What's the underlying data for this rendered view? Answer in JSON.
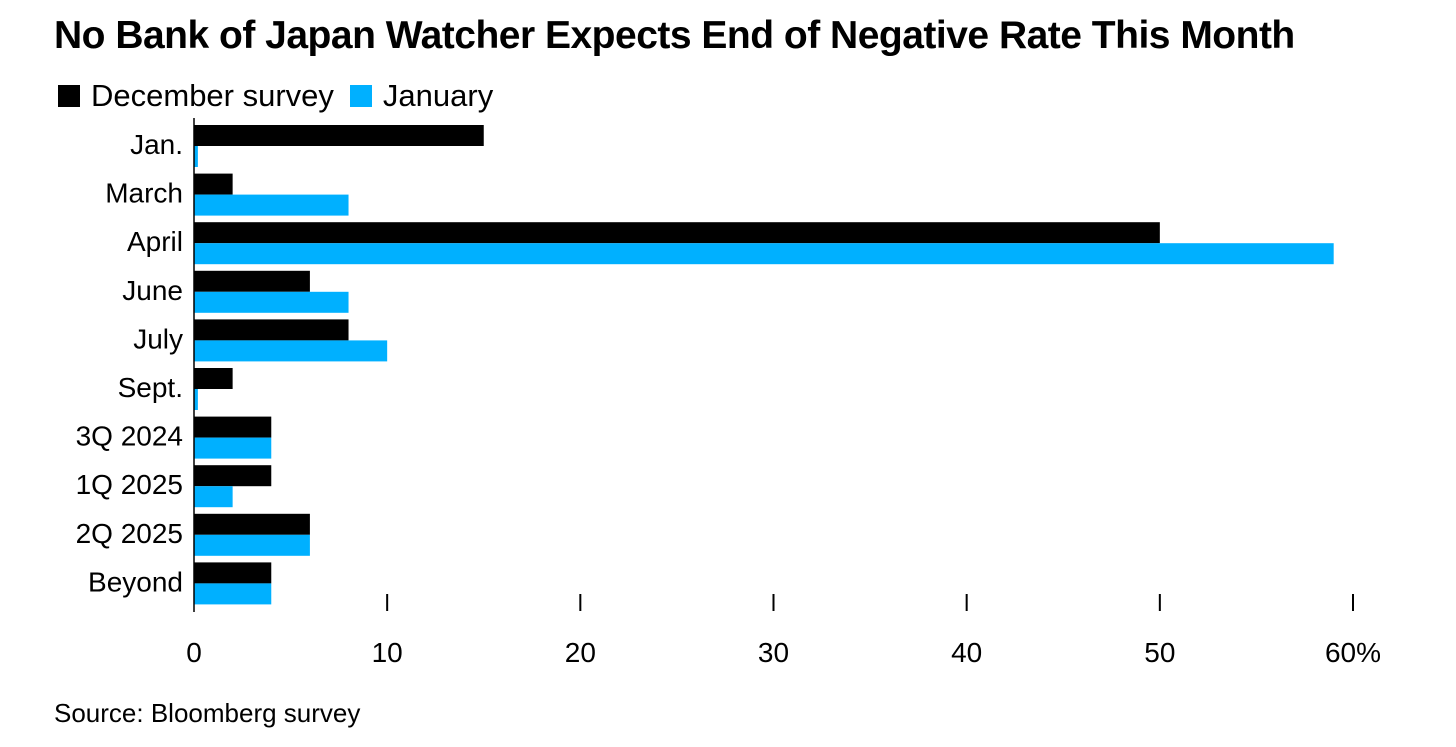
{
  "colors": {
    "series_0": "#000000",
    "series_1": "#00b0ff",
    "axis": "#000000"
  },
  "chart_data": {
    "type": "bar",
    "orientation": "horizontal",
    "title": "No Bank of Japan Watcher Expects End of Negative Rate This Month",
    "source": "Source: Bloomberg survey",
    "legend_position": "top-left",
    "categories": [
      "Jan.",
      "March",
      "April",
      "June",
      "July",
      "Sept.",
      "3Q 2024",
      "1Q 2025",
      "2Q 2025",
      "Beyond"
    ],
    "series": [
      {
        "name": "December survey",
        "values": [
          15,
          2,
          50,
          6,
          8,
          2,
          4,
          4,
          6,
          4
        ]
      },
      {
        "name": "January",
        "values": [
          0.2,
          8,
          59,
          8,
          10,
          0.2,
          4,
          2,
          6,
          4
        ]
      }
    ],
    "xlim": [
      0,
      60
    ],
    "xticks": [
      "0",
      "10",
      "20",
      "30",
      "40",
      "50",
      "60%"
    ],
    "grid": false
  }
}
